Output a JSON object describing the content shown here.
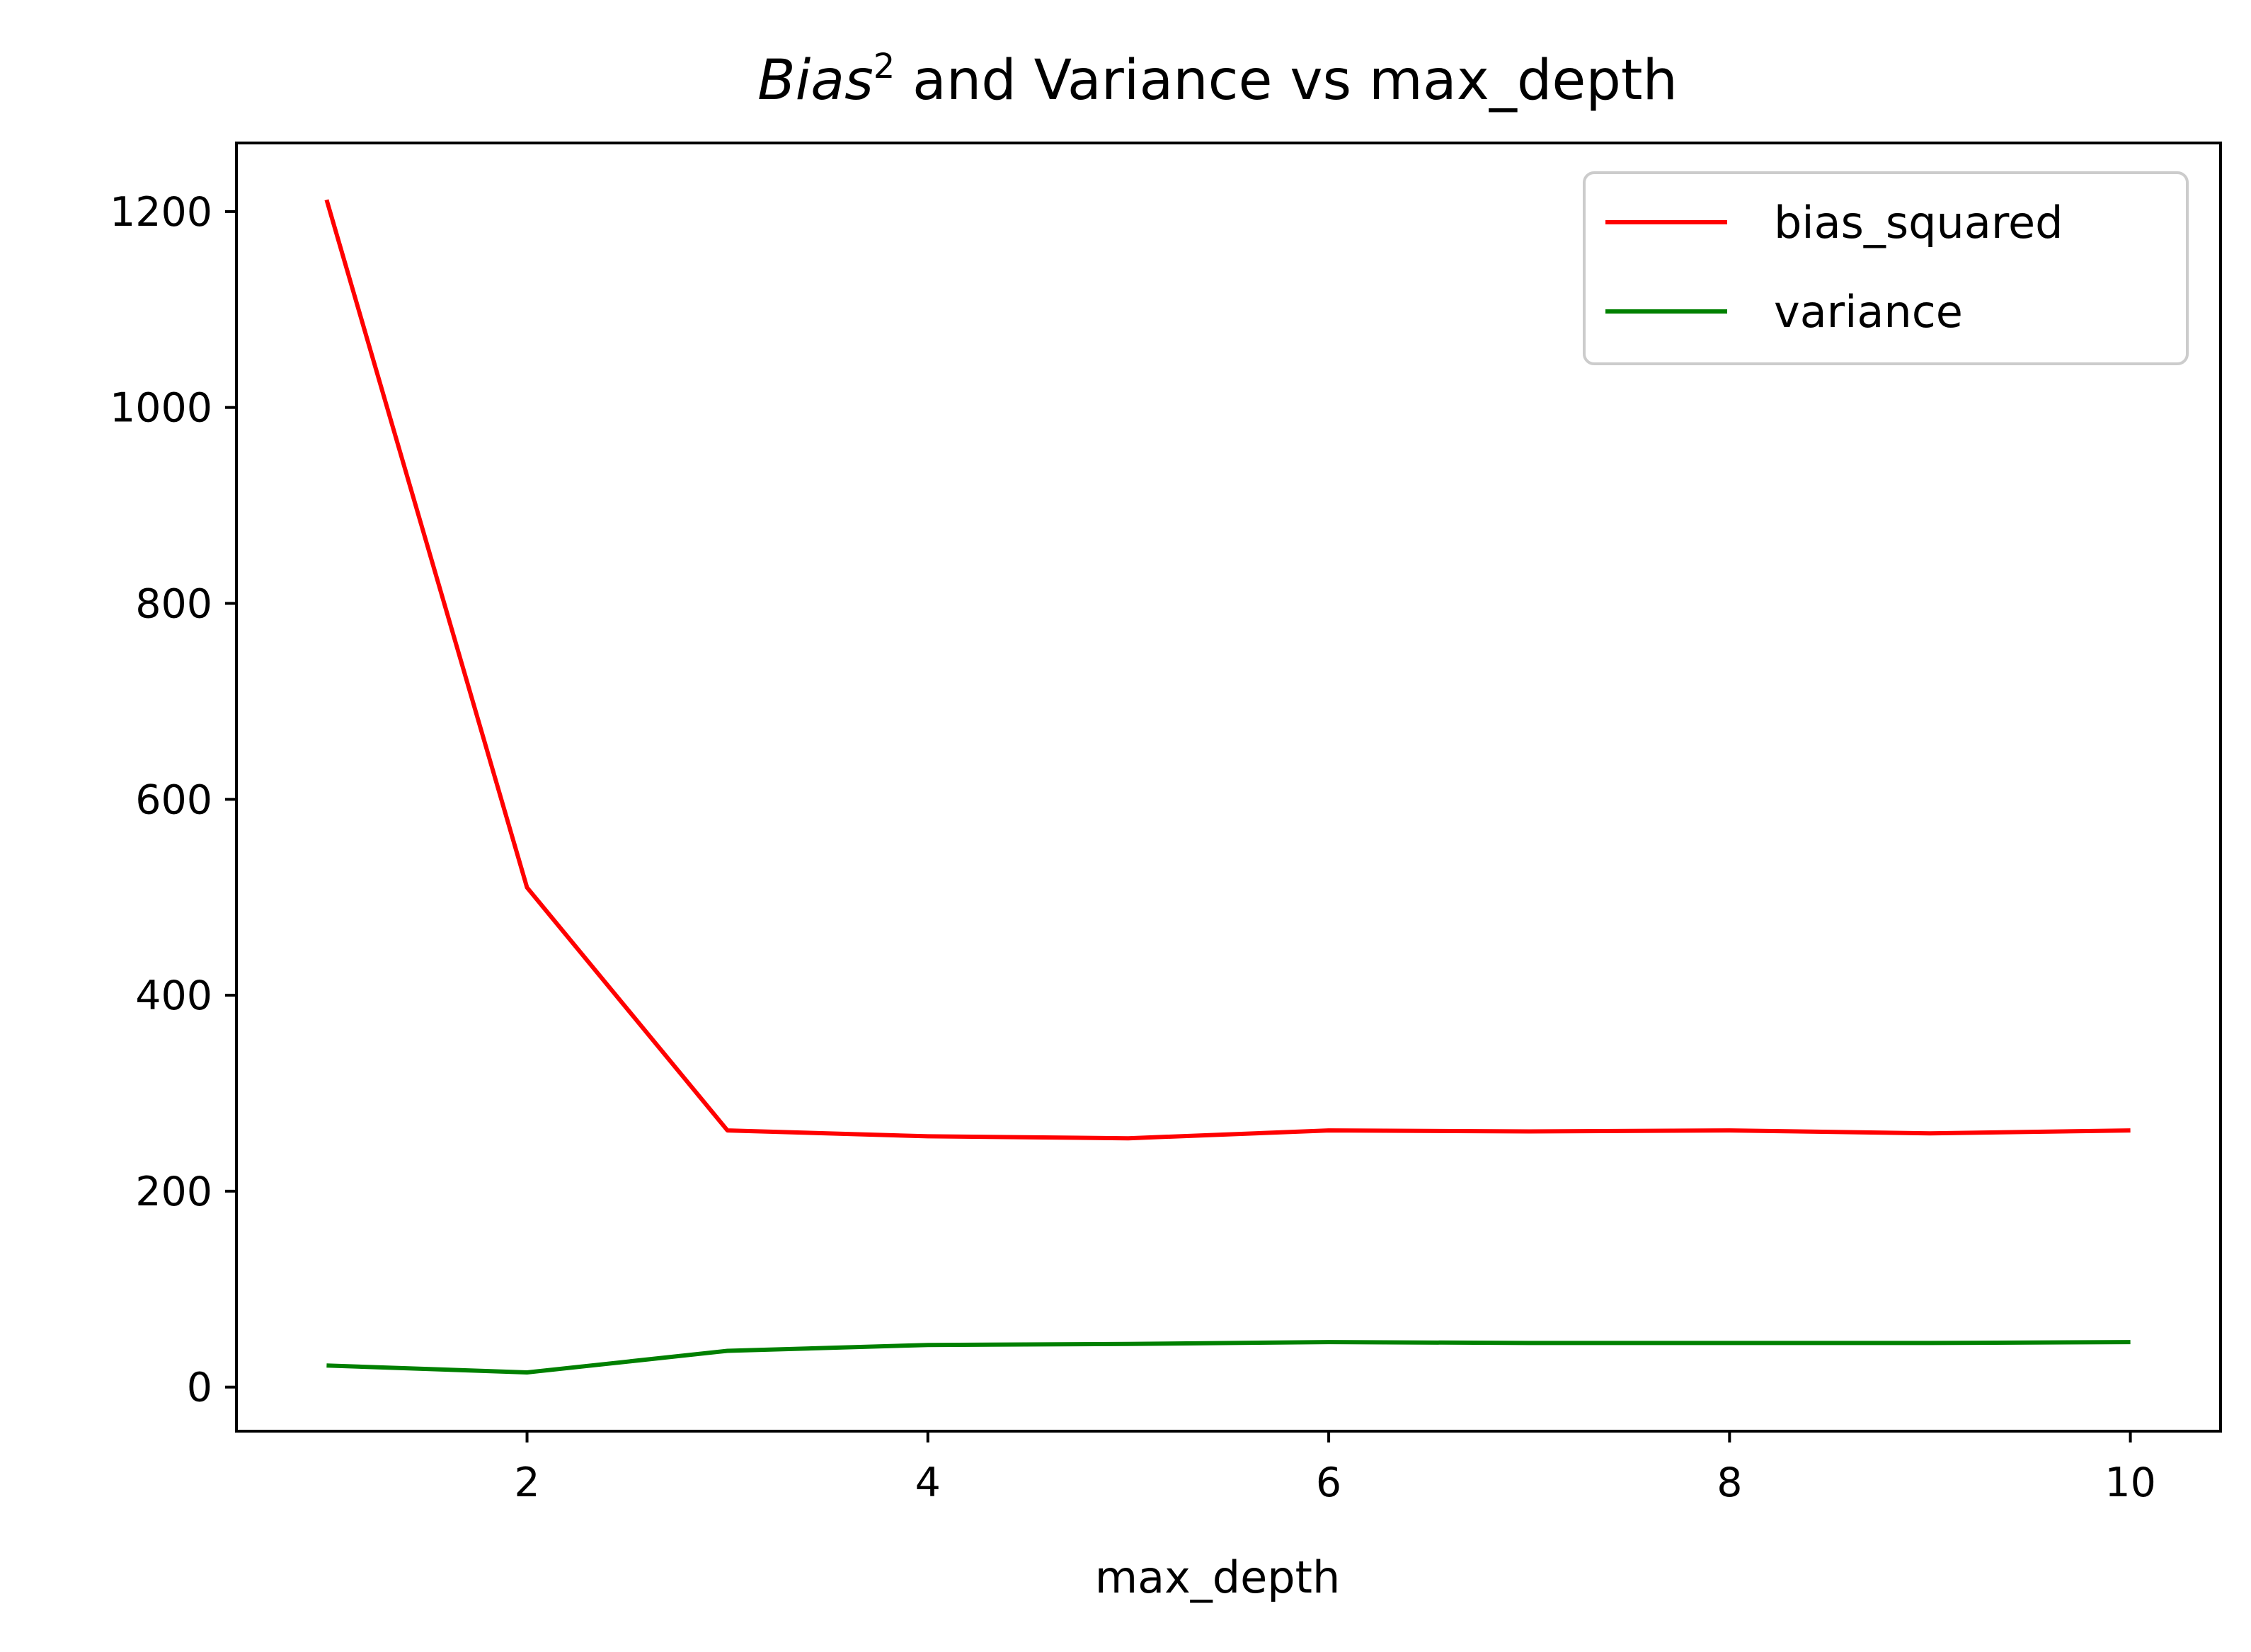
{
  "chart_data": {
    "type": "line",
    "title": {
      "italic_part": "Bias",
      "superscript": "2",
      "rest": " and Variance vs max_depth"
    },
    "xlabel": "max_depth",
    "ylabel": "",
    "xlim": [
      0.55,
      10.45
    ],
    "ylim": [
      -45,
      1270
    ],
    "xticks": [
      2,
      4,
      6,
      8,
      10
    ],
    "xtick_labels": [
      "2",
      "4",
      "6",
      "8",
      "10"
    ],
    "yticks": [
      0,
      200,
      400,
      600,
      800,
      1000,
      1200
    ],
    "ytick_labels": [
      "0",
      "200",
      "400",
      "600",
      "800",
      "1000",
      "1200"
    ],
    "grid": false,
    "legend_position": "top-right",
    "x": [
      1,
      2,
      3,
      4,
      5,
      6,
      7,
      8,
      9,
      10
    ],
    "series": [
      {
        "name": "bias_squared",
        "color": "#ff0000",
        "values": [
          1212,
          510,
          262,
          256,
          254,
          262,
          261,
          262,
          259,
          262
        ]
      },
      {
        "name": "variance",
        "color": "#008000",
        "values": [
          22,
          15,
          37,
          43,
          44,
          46,
          45,
          45,
          45,
          46
        ]
      }
    ]
  }
}
